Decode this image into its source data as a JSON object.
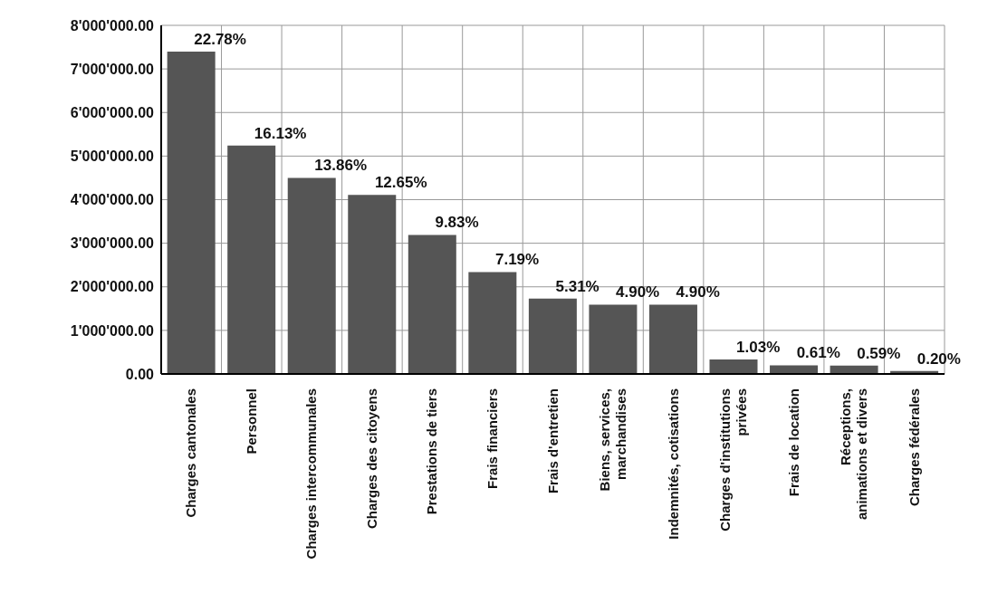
{
  "chart_data": {
    "type": "bar",
    "categories": [
      "Charges cantonales",
      "Personnel",
      "Charges intercommunales",
      "Charges des citoyens",
      "Prestations de tiers",
      "Frais financiers",
      "Frais d'entretien",
      "Biens, services, marchandises",
      "Indemnités, cotisations",
      "Charges d'institutions privées",
      "Frais de location",
      "Réceptions, animations et divers",
      "Charges fédérales"
    ],
    "values": [
      7400000,
      5240000,
      4500000,
      4110000,
      3190000,
      2340000,
      1730000,
      1590000,
      1590000,
      330000,
      200000,
      190000,
      70000
    ],
    "annotations": [
      {
        "text": "22.78%",
        "x": "Charges cantonales",
        "y": 7400000
      },
      {
        "text": "16.13%",
        "x": "Personnel",
        "y": 5240000
      },
      {
        "text": "13.86%",
        "x": "Charges intercommunales",
        "y": 4500000
      },
      {
        "text": "12.65%",
        "x": "Charges des citoyens",
        "y": 4110000
      },
      {
        "text": "9.83%",
        "x": "Prestations de tiers",
        "y": 3190000
      },
      {
        "text": "7.19%",
        "x": "Frais financiers",
        "y": 2340000
      },
      {
        "text": "5.31%",
        "x": "Frais d'entretien",
        "y": 1730000
      },
      {
        "text": "4.90%",
        "x": "Biens, services, marchandises",
        "y": 1590000
      },
      {
        "text": "4.90%",
        "x": "Indemnités, cotisations",
        "y": 1590000
      },
      {
        "text": "1.03%",
        "x": "Charges d'institutions privées",
        "y": 330000
      },
      {
        "text": "0.61%",
        "x": "Frais de location",
        "y": 200000
      },
      {
        "text": "0.59%",
        "x": "Réceptions, animations et divers",
        "y": 190000
      },
      {
        "text": "0.20%",
        "x": "Charges fédérales",
        "y": 70000
      }
    ],
    "color": "#555555",
    "ylim": [
      0,
      8000000
    ],
    "yticks": [
      {
        "value": 0,
        "label": "0.00"
      },
      {
        "value": 1000000,
        "label": "1'000'000.00"
      },
      {
        "value": 2000000,
        "label": "2'000'000.00"
      },
      {
        "value": 3000000,
        "label": "3'000'000.00"
      },
      {
        "value": 4000000,
        "label": "4'000'000.00"
      },
      {
        "value": 5000000,
        "label": "5'000'000.00"
      },
      {
        "value": 6000000,
        "label": "6'000'000.00"
      },
      {
        "value": 7000000,
        "label": "7'000'000.00"
      },
      {
        "value": 8000000,
        "label": "8'000'000.00"
      }
    ],
    "grid": true,
    "legend": false
  }
}
